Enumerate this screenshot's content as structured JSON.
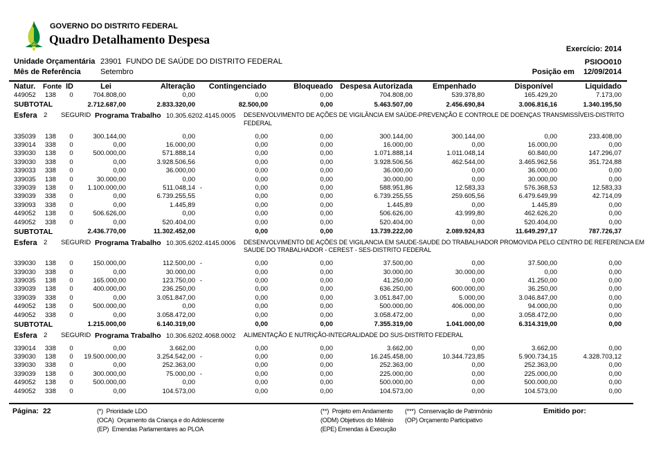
{
  "brand": {
    "org": "GOVERNO DO DISTRITO FEDERAL",
    "title": "Quadro Detalhamento Despesa"
  },
  "meta": {
    "exercicio": "Exercício: 2014",
    "report_code": "PSIOO010",
    "posicao_label": "Posição em",
    "posicao_date": "12/09/2014",
    "unidade_label": "Unidade Orçamentária",
    "unidade_code": "23901",
    "unidade_nome": "FUNDO DE SAÚDE DO DISTRITO FEDERAL",
    "mes_label": "Mês de Referência",
    "mes_valor": "Setembro"
  },
  "table": {
    "headers": [
      "Natur.",
      "Fonte",
      "ID",
      "Lei",
      "Alteração",
      "Contingenciado",
      "Bloqueado",
      "Despesa Autorizada",
      "Empenhado",
      "Disponível",
      "Liquidado"
    ],
    "subtotal_label": "SUBTOTAL",
    "esfera_label": "Esfera",
    "programa_label": "Programa Trabalho",
    "lines": [
      {
        "t": "row",
        "c": [
          "449052",
          "138",
          "0",
          "704.808,00",
          "0,00",
          "0,00",
          "0,00",
          "704.808,00",
          "539.378,80",
          "165.429,20",
          "7.173,00"
        ]
      },
      {
        "t": "sub",
        "c": [
          "2.712.687,00",
          "2.833.320,00",
          "82.500,00",
          "0,00",
          "5.463.507,00",
          "2.456.690,84",
          "3.006.816,16",
          "1.340.195,50"
        ]
      },
      {
        "t": "esf",
        "num": "2",
        "seg": "SEGURID",
        "code": "10.305.6202.4145.0005",
        "desc_lines": [
          "DESENVOLVIMENTO DE AÇÕES DE VIGILÂNCIA EM SAÚDE-PREVENÇÃO E CONTROLE DE DOENÇAS TRANSMISSÍVEIS-DISTRITO",
          "FEDERAL"
        ]
      },
      {
        "t": "row",
        "c": [
          "335039",
          "138",
          "0",
          "300.144,00",
          "0,00",
          "0,00",
          "0,00",
          "300.144,00",
          "300.144,00",
          "0,00",
          "233.408,00"
        ]
      },
      {
        "t": "row",
        "c": [
          "339014",
          "338",
          "0",
          "0,00",
          "16.000,00",
          "0,00",
          "0,00",
          "16.000,00",
          "0,00",
          "16.000,00",
          "0,00"
        ]
      },
      {
        "t": "row",
        "c": [
          "339030",
          "138",
          "0",
          "500.000,00",
          "571.888,14",
          "0,00",
          "0,00",
          "1.071.888,14",
          "1.011.048,14",
          "60.840,00",
          "147.296,07"
        ]
      },
      {
        "t": "row",
        "c": [
          "339030",
          "338",
          "0",
          "0,00",
          "3.928.506,56",
          "0,00",
          "0,00",
          "3.928.506,56",
          "462.544,00",
          "3.465.962,56",
          "351.724,88"
        ]
      },
      {
        "t": "row",
        "c": [
          "339033",
          "338",
          "0",
          "0,00",
          "36.000,00",
          "0,00",
          "0,00",
          "36.000,00",
          "0,00",
          "36.000,00",
          "0,00"
        ]
      },
      {
        "t": "row",
        "c": [
          "339035",
          "138",
          "0",
          "30.000,00",
          "0,00",
          "0,00",
          "0,00",
          "30.000,00",
          "0,00",
          "30.000,00",
          "0,00"
        ]
      },
      {
        "t": "row",
        "c": [
          "339039",
          "138",
          "0",
          "1.100.000,00",
          "511.048,14 -",
          "0,00",
          "0,00",
          "588.951,86",
          "12.583,33",
          "576.368,53",
          "12.583,33"
        ]
      },
      {
        "t": "row",
        "c": [
          "339039",
          "338",
          "0",
          "0,00",
          "6.739.255,55",
          "0,00",
          "0,00",
          "6.739.255,55",
          "259.605,56",
          "6.479.649,99",
          "42.714,09"
        ]
      },
      {
        "t": "row",
        "c": [
          "339093",
          "338",
          "0",
          "0,00",
          "1.445,89",
          "0,00",
          "0,00",
          "1.445,89",
          "0,00",
          "1.445,89",
          "0,00"
        ]
      },
      {
        "t": "row",
        "c": [
          "449052",
          "138",
          "0",
          "506.626,00",
          "0,00",
          "0,00",
          "0,00",
          "506.626,00",
          "43.999,80",
          "462.626,20",
          "0,00"
        ]
      },
      {
        "t": "row",
        "c": [
          "449052",
          "338",
          "0",
          "0,00",
          "520.404,00",
          "0,00",
          "0,00",
          "520.404,00",
          "0,00",
          "520.404,00",
          "0,00"
        ]
      },
      {
        "t": "sub",
        "c": [
          "2.436.770,00",
          "11.302.452,00",
          "0,00",
          "0,00",
          "13.739.222,00",
          "2.089.924,83",
          "11.649.297,17",
          "787.726,37"
        ]
      },
      {
        "t": "esf",
        "num": "2",
        "seg": "SEGURID",
        "code": "10.305.6202.4145.0006",
        "desc_lines": [
          "DESENVOLVIMENTO DE AÇÕES DE VIGILANCIA EM SAUDE-SAUDE DO TRABALHADOR PROMOVIDA PELO CENTRO DE REFERENCIA EM",
          "SAUDE DO TRABALHADOR - CEREST - SES-DISTRITO FEDERAL"
        ]
      },
      {
        "t": "row",
        "c": [
          "339030",
          "138",
          "0",
          "150.000,00",
          "112.500,00 -",
          "0,00",
          "0,00",
          "37.500,00",
          "0,00",
          "37.500,00",
          "0,00"
        ]
      },
      {
        "t": "row",
        "c": [
          "339030",
          "338",
          "0",
          "0,00",
          "30.000,00",
          "0,00",
          "0,00",
          "30.000,00",
          "30.000,00",
          "0,00",
          "0,00"
        ]
      },
      {
        "t": "row",
        "c": [
          "339035",
          "138",
          "0",
          "165.000,00",
          "123.750,00 -",
          "0,00",
          "0,00",
          "41.250,00",
          "0,00",
          "41.250,00",
          "0,00"
        ]
      },
      {
        "t": "row",
        "c": [
          "339039",
          "138",
          "0",
          "400.000,00",
          "236.250,00",
          "0,00",
          "0,00",
          "636.250,00",
          "600.000,00",
          "36.250,00",
          "0,00"
        ]
      },
      {
        "t": "row",
        "c": [
          "339039",
          "338",
          "0",
          "0,00",
          "3.051.847,00",
          "0,00",
          "0,00",
          "3.051.847,00",
          "5.000,00",
          "3.046.847,00",
          "0,00"
        ]
      },
      {
        "t": "row",
        "c": [
          "449052",
          "138",
          "0",
          "500.000,00",
          "0,00",
          "0,00",
          "0,00",
          "500.000,00",
          "406.000,00",
          "94.000,00",
          "0,00"
        ]
      },
      {
        "t": "row",
        "c": [
          "449052",
          "338",
          "0",
          "0,00",
          "3.058.472,00",
          "0,00",
          "0,00",
          "3.058.472,00",
          "0,00",
          "3.058.472,00",
          "0,00"
        ]
      },
      {
        "t": "sub",
        "c": [
          "1.215.000,00",
          "6.140.319,00",
          "0,00",
          "0,00",
          "7.355.319,00",
          "1.041.000,00",
          "6.314.319,00",
          "0,00"
        ]
      },
      {
        "t": "esf",
        "num": "2",
        "seg": "SEGURID",
        "code": "10.306.6202.4068.0002",
        "desc_lines": [
          "ALIMENTAÇÃO E NUTRIÇÃO-INTEGRALIDADE DO SUS-DISTRITO FEDERAL"
        ]
      },
      {
        "t": "row",
        "c": [
          "339014",
          "338",
          "0",
          "0,00",
          "3.662,00",
          "0,00",
          "0,00",
          "3.662,00",
          "0,00",
          "3.662,00",
          "0,00"
        ]
      },
      {
        "t": "row",
        "c": [
          "339030",
          "138",
          "0",
          "19.500.000,00",
          "3.254.542,00 -",
          "0,00",
          "0,00",
          "16.245.458,00",
          "10.344.723,85",
          "5.900.734,15",
          "4.328.703,12"
        ]
      },
      {
        "t": "row",
        "c": [
          "339030",
          "338",
          "0",
          "0,00",
          "252.363,00",
          "0,00",
          "0,00",
          "252.363,00",
          "0,00",
          "252.363,00",
          "0,00"
        ]
      },
      {
        "t": "row",
        "c": [
          "339039",
          "138",
          "0",
          "300.000,00",
          "75.000,00 -",
          "0,00",
          "0,00",
          "225.000,00",
          "0,00",
          "225.000,00",
          "0,00"
        ]
      },
      {
        "t": "row",
        "c": [
          "449052",
          "138",
          "0",
          "500.000,00",
          "0,00",
          "0,00",
          "0,00",
          "500.000,00",
          "0,00",
          "500.000,00",
          "0,00"
        ]
      },
      {
        "t": "row",
        "c": [
          "449052",
          "338",
          "0",
          "0,00",
          "104.573,00",
          "0,00",
          "0,00",
          "104.573,00",
          "0,00",
          "104.573,00",
          "0,00"
        ]
      }
    ]
  },
  "footer": {
    "pagina_label": "Página:",
    "pagina_num": "22",
    "col1": [
      "(*)  Prioridade LDO",
      "(OCA)  Orçamento da Criança e do Adolescente",
      "(EP)  Emendas Parlamentares ao PLOA"
    ],
    "col2": [
      "(**)  Projeto em Andamento",
      "(ODM) Objetivos do Milênio",
      "(EPE) Emendas à Execução"
    ],
    "col3": [
      "(***)  Conservação de Patrimônio",
      "(OP) Orçamento Participativo"
    ],
    "emitido_label": "Emitido por:"
  }
}
